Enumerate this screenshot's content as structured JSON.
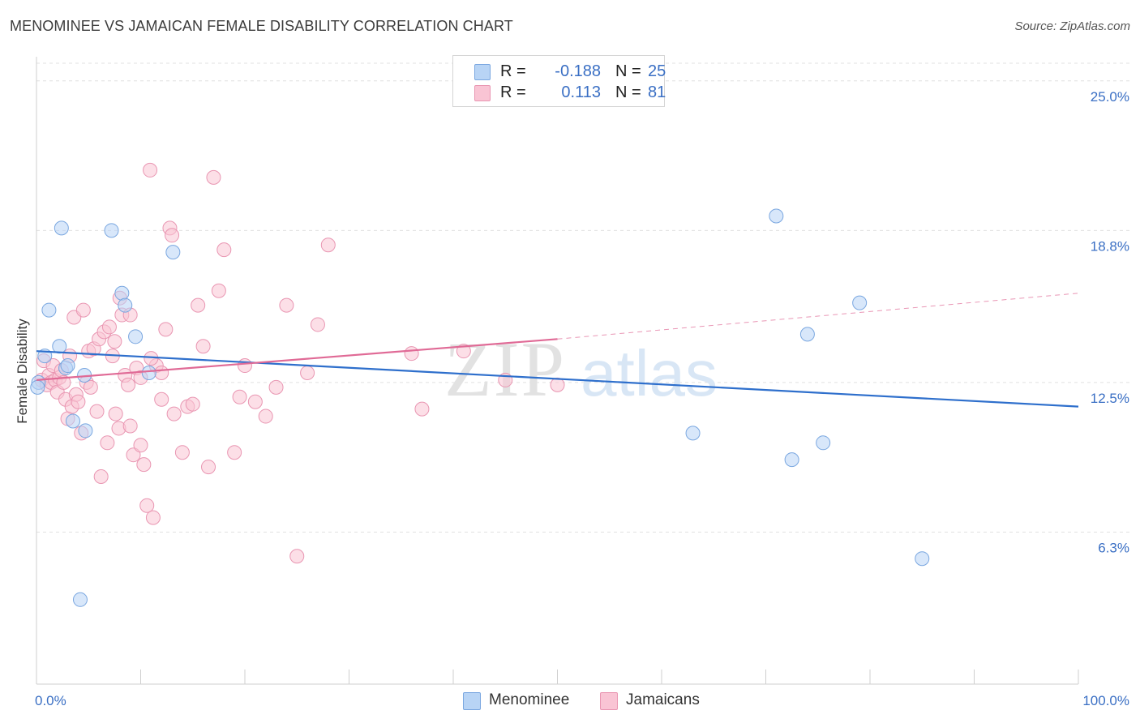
{
  "title": "MENOMINEE VS JAMAICAN FEMALE DISABILITY CORRELATION CHART",
  "source": "Source: ZipAtlas.com",
  "watermark": {
    "zip": "ZIP",
    "atlas": "atlas"
  },
  "colors": {
    "menominee_fill": "#b8d4f5",
    "menominee_stroke": "#7aa7e0",
    "menominee_line": "#2e6fcc",
    "jamaican_fill": "#f9c4d4",
    "jamaican_stroke": "#e996b2",
    "jamaican_line": "#e06a96",
    "axis_label": "#3a6fc4",
    "grid": "#e0e0e0"
  },
  "legend": {
    "rows": [
      {
        "r_label": "R =",
        "r_value": "-0.188",
        "n_label": "N =",
        "n_value": "25"
      },
      {
        "r_label": "R =",
        "r_value": "0.113",
        "n_label": "N =",
        "n_value": "81"
      }
    ]
  },
  "bottom_legend": [
    "Menominee",
    "Jamaicans"
  ],
  "chart_data": {
    "type": "scatter",
    "ylabel": "Female Disability",
    "x_tick_labels": [
      "0.0%",
      "100.0%"
    ],
    "y_tick_labels": [
      "25.0%",
      "18.8%",
      "12.5%",
      "6.3%"
    ],
    "y_ticks": [
      25.0,
      18.8,
      12.5,
      6.3
    ],
    "xlim": [
      0,
      100
    ],
    "ylim": [
      0,
      26.0
    ],
    "grid": "horizontal-dashed",
    "legend_placement": "top-center",
    "series": [
      {
        "name": "Menominee",
        "x": [
          0.2,
          0.8,
          1.2,
          2.2,
          2.4,
          2.8,
          3.5,
          4.6,
          4.7,
          7.2,
          8.2,
          8.5,
          9.5,
          10.8,
          13.1,
          3.0,
          0.1,
          63.0,
          71.0,
          74.0,
          79.0,
          72.5,
          75.5,
          85.0,
          4.2
        ],
        "y": [
          12.5,
          13.6,
          15.5,
          14.0,
          18.9,
          13.1,
          10.9,
          12.8,
          10.5,
          18.8,
          16.2,
          15.7,
          14.4,
          12.9,
          17.9,
          13.2,
          12.3,
          10.4,
          19.4,
          14.5,
          15.8,
          9.3,
          10.0,
          5.2,
          3.5
        ],
        "trend": {
          "x": [
            0,
            100
          ],
          "y": [
            13.8,
            11.5
          ]
        }
      },
      {
        "name": "Jamaicans",
        "x": [
          0.5,
          0.7,
          1.0,
          1.2,
          1.4,
          1.6,
          1.8,
          2.0,
          2.2,
          2.4,
          2.6,
          2.8,
          3.0,
          3.2,
          3.4,
          3.6,
          3.8,
          4.0,
          4.3,
          4.5,
          4.8,
          5.0,
          5.2,
          5.5,
          5.8,
          6.0,
          6.2,
          6.5,
          6.8,
          7.0,
          7.3,
          7.6,
          7.9,
          8.2,
          8.5,
          8.8,
          9.0,
          9.3,
          9.6,
          10.0,
          10.3,
          10.6,
          10.9,
          11.2,
          11.5,
          12.0,
          12.4,
          12.8,
          13.2,
          14.0,
          14.5,
          15.0,
          15.5,
          16.0,
          16.5,
          17.0,
          17.5,
          18.0,
          19.0,
          19.5,
          20.0,
          21.0,
          22.0,
          23.0,
          24.0,
          25.0,
          26.0,
          27.0,
          28.0,
          12.0,
          13.0,
          7.5,
          8.0,
          9.0,
          10.0,
          11.0,
          36.0,
          37.0,
          41.0,
          45.0,
          50.0
        ],
        "y": [
          12.6,
          13.4,
          12.4,
          12.8,
          12.5,
          13.2,
          12.6,
          12.1,
          12.7,
          13.0,
          12.5,
          11.8,
          11.0,
          13.6,
          11.5,
          15.2,
          12.0,
          11.7,
          10.4,
          15.5,
          12.5,
          13.8,
          12.3,
          13.9,
          11.3,
          14.3,
          8.6,
          14.6,
          10.0,
          14.8,
          13.6,
          11.2,
          10.6,
          15.3,
          12.8,
          12.4,
          10.7,
          9.5,
          13.1,
          9.9,
          9.1,
          7.4,
          21.3,
          6.9,
          13.2,
          11.8,
          14.7,
          18.9,
          11.2,
          9.6,
          11.5,
          11.6,
          15.7,
          14.0,
          9.0,
          21.0,
          16.3,
          18.0,
          9.6,
          11.9,
          13.2,
          11.7,
          11.1,
          12.3,
          15.7,
          5.3,
          12.9,
          14.9,
          18.2,
          12.9,
          18.6,
          14.2,
          16.0,
          15.3,
          12.7,
          13.5,
          13.7,
          11.4,
          13.8,
          12.6,
          12.4
        ],
        "trend": {
          "x": [
            0,
            50
          ],
          "y": [
            12.6,
            14.3
          ]
        },
        "trend_extension": {
          "x": [
            50,
            100
          ],
          "y": [
            14.3,
            16.2
          ]
        }
      }
    ]
  }
}
